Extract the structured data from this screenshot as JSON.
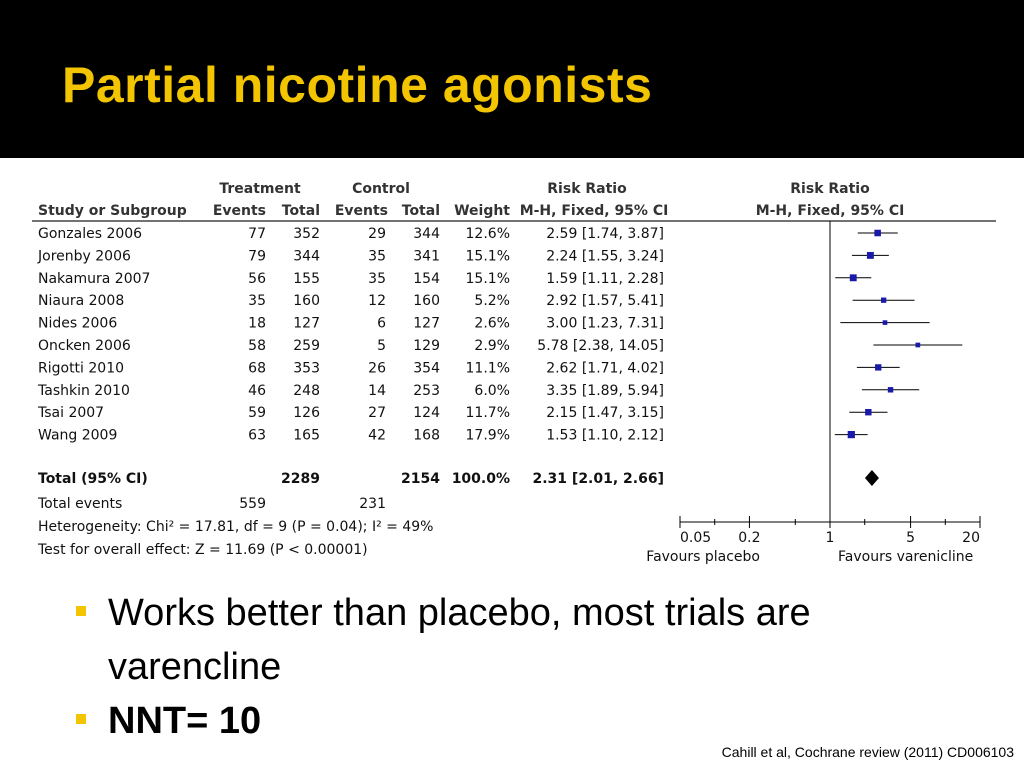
{
  "slide": {
    "title": "Partial nicotine agonists",
    "bullets": [
      "Works better than placebo, most trials are varencline",
      "NNT= 10"
    ],
    "citation": "Cahill et al, Cochrane review (2011) CD006103",
    "colors": {
      "title": "#f2c500",
      "bullet": "#f2c500",
      "background": "#000000",
      "marker": "#1a1aa8"
    }
  },
  "chart_data": {
    "type": "forest",
    "headers": {
      "treatment": "Treatment",
      "control": "Control",
      "risk_ratio": "Risk Ratio",
      "plot_title": "Risk Ratio",
      "study": "Study or Subgroup",
      "events": "Events",
      "total": "Total",
      "weight": "Weight",
      "method": "M-H, Fixed, 95% CI"
    },
    "studies": [
      {
        "name": "Gonzales 2006",
        "t_events": "77",
        "t_total": "352",
        "c_events": "29",
        "c_total": "344",
        "weight": "12.6%",
        "ci_text": "2.59 [1.74, 3.87]",
        "rr": 2.59,
        "lo": 1.74,
        "hi": 3.87,
        "w": 12.6
      },
      {
        "name": "Jorenby 2006",
        "t_events": "79",
        "t_total": "344",
        "c_events": "35",
        "c_total": "341",
        "weight": "15.1%",
        "ci_text": "2.24 [1.55, 3.24]",
        "rr": 2.24,
        "lo": 1.55,
        "hi": 3.24,
        "w": 15.1
      },
      {
        "name": "Nakamura 2007",
        "t_events": "56",
        "t_total": "155",
        "c_events": "35",
        "c_total": "154",
        "weight": "15.1%",
        "ci_text": "1.59 [1.11, 2.28]",
        "rr": 1.59,
        "lo": 1.11,
        "hi": 2.28,
        "w": 15.1
      },
      {
        "name": "Niaura 2008",
        "t_events": "35",
        "t_total": "160",
        "c_events": "12",
        "c_total": "160",
        "weight": "5.2%",
        "ci_text": "2.92 [1.57, 5.41]",
        "rr": 2.92,
        "lo": 1.57,
        "hi": 5.41,
        "w": 5.2
      },
      {
        "name": "Nides 2006",
        "t_events": "18",
        "t_total": "127",
        "c_events": "6",
        "c_total": "127",
        "weight": "2.6%",
        "ci_text": "3.00 [1.23, 7.31]",
        "rr": 3.0,
        "lo": 1.23,
        "hi": 7.31,
        "w": 2.6
      },
      {
        "name": "Oncken 2006",
        "t_events": "58",
        "t_total": "259",
        "c_events": "5",
        "c_total": "129",
        "weight": "2.9%",
        "ci_text": "5.78 [2.38, 14.05]",
        "rr": 5.78,
        "lo": 2.38,
        "hi": 14.05,
        "w": 2.9
      },
      {
        "name": "Rigotti 2010",
        "t_events": "68",
        "t_total": "353",
        "c_events": "26",
        "c_total": "354",
        "weight": "11.1%",
        "ci_text": "2.62 [1.71, 4.02]",
        "rr": 2.62,
        "lo": 1.71,
        "hi": 4.02,
        "w": 11.1
      },
      {
        "name": "Tashkin 2010",
        "t_events": "46",
        "t_total": "248",
        "c_events": "14",
        "c_total": "253",
        "weight": "6.0%",
        "ci_text": "3.35 [1.89, 5.94]",
        "rr": 3.35,
        "lo": 1.89,
        "hi": 5.94,
        "w": 6.0
      },
      {
        "name": "Tsai 2007",
        "t_events": "59",
        "t_total": "126",
        "c_events": "27",
        "c_total": "124",
        "weight": "11.7%",
        "ci_text": "2.15 [1.47, 3.15]",
        "rr": 2.15,
        "lo": 1.47,
        "hi": 3.15,
        "w": 11.7
      },
      {
        "name": "Wang 2009",
        "t_events": "63",
        "t_total": "165",
        "c_events": "42",
        "c_total": "168",
        "weight": "17.9%",
        "ci_text": "1.53 [1.10, 2.12]",
        "rr": 1.53,
        "lo": 1.1,
        "hi": 2.12,
        "w": 17.9
      }
    ],
    "total": {
      "name": "Total (95% CI)",
      "t_total": "2289",
      "c_total": "2154",
      "weight": "100.0%",
      "ci_text": "2.31 [2.01, 2.66]",
      "rr": 2.31,
      "lo": 2.01,
      "hi": 2.66
    },
    "total_events": {
      "label": "Total events",
      "treatment": "559",
      "control": "231"
    },
    "heterogeneity": "Heterogeneity: Chi² = 17.81, df = 9 (P = 0.04); I² = 49%",
    "overall_effect": "Test for overall effect: Z = 11.69 (P < 0.00001)",
    "axis": {
      "scale": "log",
      "min": 0.05,
      "max": 20,
      "null_value": 1,
      "ticks": [
        0.05,
        0.2,
        1,
        5,
        20
      ],
      "tick_labels": [
        "0.05",
        "0.2",
        "1",
        "5",
        "20"
      ]
    },
    "favours_left": "Favours placebo",
    "favours_right": "Favours varenicline"
  }
}
